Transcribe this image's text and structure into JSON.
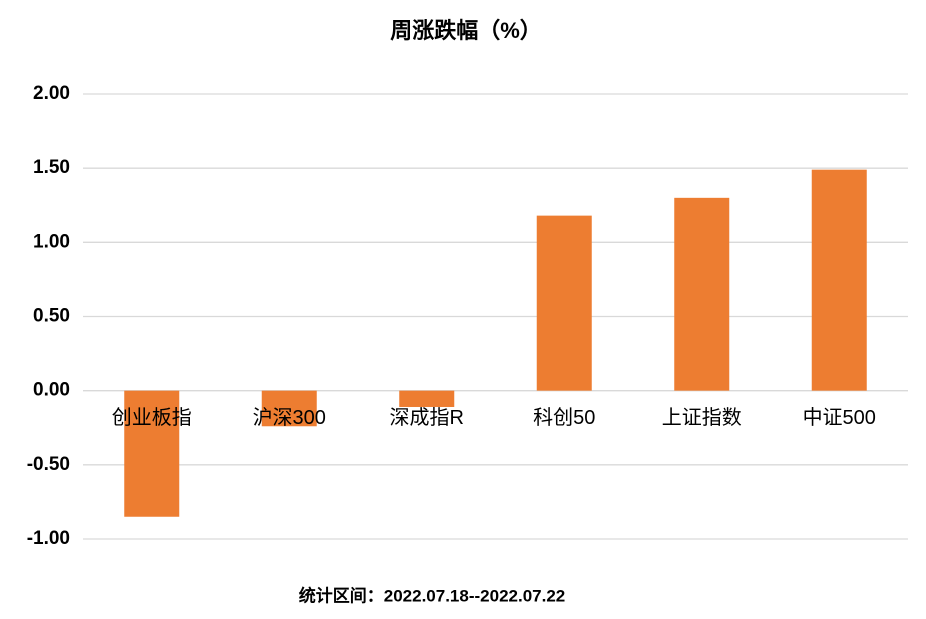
{
  "chart_data": {
    "type": "bar",
    "title": "周涨跌幅（%）",
    "categories": [
      "创业板指",
      "沪深300",
      "深成指R",
      "科创50",
      "上证指数",
      "中证500"
    ],
    "values": [
      -0.85,
      -0.24,
      -0.11,
      1.18,
      1.3,
      1.49
    ],
    "color": "#ed7d31",
    "ylim": [
      -1,
      2
    ],
    "yticks": [
      {
        "value": -1,
        "label": "-1.00"
      },
      {
        "value": -0.5,
        "label": "-0.50"
      },
      {
        "value": 0,
        "label": "0.00"
      },
      {
        "value": 0.5,
        "label": "0.50"
      },
      {
        "value": 1,
        "label": "1.00"
      },
      {
        "value": 1.5,
        "label": "1.50"
      },
      {
        "value": 2,
        "label": "2.00"
      }
    ],
    "grid": true,
    "footnote": "统计区间：2022.07.18--2022.07.22"
  }
}
